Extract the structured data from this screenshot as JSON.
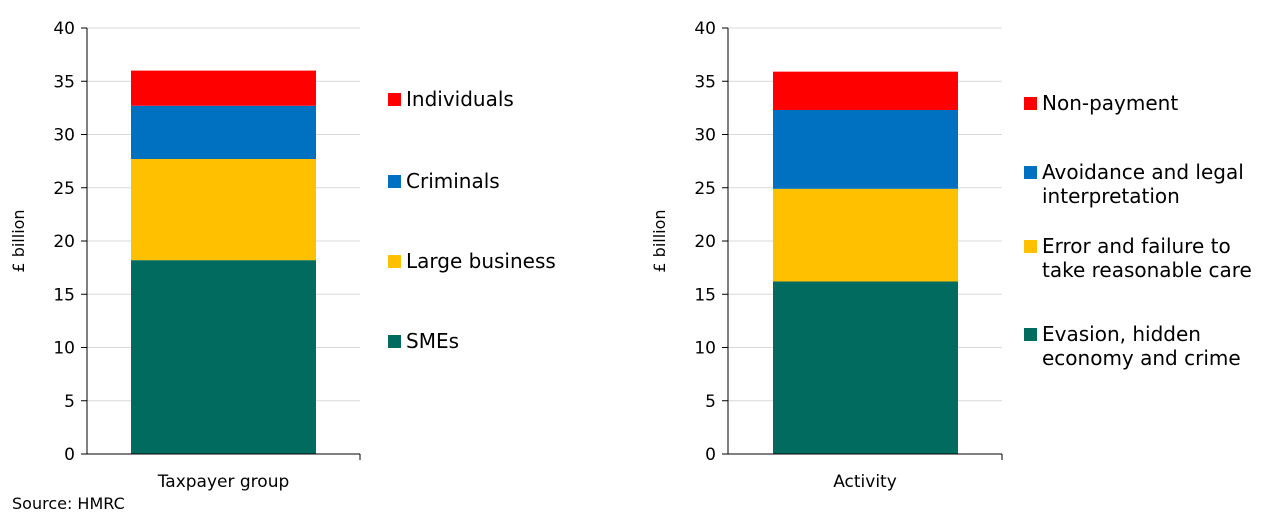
{
  "source": "Source: HMRC",
  "colors": {
    "red": "#ff0000",
    "blue": "#0070c0",
    "yellow": "#ffc000",
    "green": "#006b5e",
    "grid": "#d9d9d9"
  },
  "chart_data": [
    {
      "type": "bar",
      "stacked": true,
      "categories": [
        "Taxpayer group"
      ],
      "ylabel": "£ billion",
      "ylim": [
        0,
        40
      ],
      "yticks": [
        0,
        5,
        10,
        15,
        20,
        25,
        30,
        35,
        40
      ],
      "grid": true,
      "legend": "right",
      "series": [
        {
          "name": "SMEs",
          "values": [
            18.2
          ],
          "color": "#006b5e"
        },
        {
          "name": "Large business",
          "values": [
            9.5
          ],
          "color": "#ffc000"
        },
        {
          "name": "Criminals",
          "values": [
            5.0
          ],
          "color": "#0070c0"
        },
        {
          "name": "Individuals",
          "values": [
            3.3
          ],
          "color": "#ff0000"
        }
      ]
    },
    {
      "type": "bar",
      "stacked": true,
      "categories": [
        "Activity"
      ],
      "ylabel": "£ billion",
      "ylim": [
        0,
        40
      ],
      "yticks": [
        0,
        5,
        10,
        15,
        20,
        25,
        30,
        35,
        40
      ],
      "grid": true,
      "legend": "right",
      "series": [
        {
          "name": [
            "Evasion, hidden",
            "economy and crime"
          ],
          "values": [
            16.2
          ],
          "color": "#006b5e"
        },
        {
          "name": [
            "Error and failure to",
            "take reasonable care"
          ],
          "values": [
            8.7
          ],
          "color": "#ffc000"
        },
        {
          "name": [
            "Avoidance and legal",
            "interpretation"
          ],
          "values": [
            7.4
          ],
          "color": "#0070c0"
        },
        {
          "name": [
            "Non-payment"
          ],
          "values": [
            3.6
          ],
          "color": "#ff0000"
        }
      ]
    }
  ]
}
